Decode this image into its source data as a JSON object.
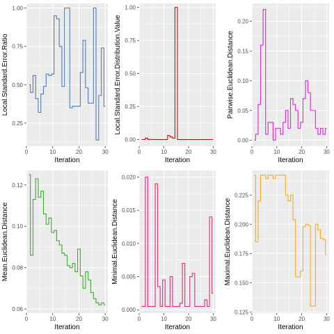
{
  "figure": {
    "background": "#ffffff",
    "panel_background": "#ebebeb",
    "grid_color": "#ffffff"
  },
  "chart_data": [
    {
      "type": "line",
      "step": true,
      "color": "#4f7eb4",
      "xlabel": "Iteration",
      "ylabel": "Local.Standard.Error.Ratio",
      "xlim": [
        0,
        31
      ],
      "ylim": [
        0.1,
        1.03
      ],
      "xticks": [
        "0",
        "10",
        "20",
        "30"
      ],
      "yticks": [
        "0.25",
        "0.50",
        "0.75",
        "1.00"
      ],
      "x": [
        1,
        2,
        3,
        4,
        5,
        6,
        7,
        8,
        9,
        10,
        11,
        12,
        13,
        14,
        15,
        16,
        17,
        18,
        19,
        20,
        21,
        22,
        23,
        24,
        25,
        26,
        27,
        28,
        29,
        30
      ],
      "y": [
        0.5,
        0.45,
        0.56,
        0.41,
        0.32,
        0.44,
        0.49,
        0.57,
        0.56,
        0.57,
        0.95,
        0.93,
        0.75,
        0.49,
        1.0,
        1.0,
        0.35,
        0.36,
        0.36,
        0.36,
        0.58,
        0.79,
        0.48,
        0.38,
        0.38,
        1.0,
        0.14,
        0.43,
        0.74,
        0.36
      ]
    },
    {
      "type": "line",
      "step": true,
      "color": "#a31a1a",
      "xlabel": "Iteration",
      "ylabel": "Local.Standard.Error.Distribution.Value",
      "xlim": [
        0,
        31
      ],
      "ylim": [
        -0.05,
        1.03
      ],
      "xticks": [
        "0",
        "10",
        "20",
        "30"
      ],
      "yticks": [
        "0.00",
        "0.25",
        "0.50",
        "0.75",
        "1.00"
      ],
      "x": [
        1,
        2,
        3,
        4,
        5,
        6,
        7,
        8,
        9,
        10,
        11,
        12,
        13,
        14,
        15,
        16,
        17,
        18,
        19,
        20,
        21,
        22,
        23,
        24,
        25,
        26,
        27,
        28,
        29,
        30
      ],
      "y": [
        0.0,
        0.0,
        0.01,
        0.0,
        0.0,
        0.0,
        0.0,
        0.0,
        0.0,
        0.0,
        0.0,
        0.03,
        0.02,
        0.01,
        1.0,
        0.0,
        0.0,
        0.0,
        0.0,
        0.0,
        0.0,
        0.0,
        0.0,
        0.0,
        0.0,
        0.0,
        0.0,
        0.0,
        0.0,
        0.0
      ]
    },
    {
      "type": "line",
      "step": true,
      "color": "#d726d6",
      "xlabel": "Iteration",
      "ylabel": "Pairwise.Euclidean.Distance",
      "xlim": [
        0,
        31
      ],
      "ylim": [
        -0.01,
        0.23
      ],
      "xticks": [
        "0",
        "10",
        "20",
        "30"
      ],
      "yticks": [
        "0.00",
        "0.05",
        "0.10",
        "0.15",
        "0.20"
      ],
      "x": [
        1,
        2,
        3,
        4,
        5,
        6,
        7,
        8,
        9,
        10,
        11,
        12,
        13,
        14,
        15,
        16,
        17,
        18,
        19,
        20,
        21,
        22,
        23,
        24,
        25,
        26,
        27,
        28,
        29,
        30
      ],
      "y": [
        0.0,
        0.01,
        0.06,
        0.16,
        0.22,
        0.01,
        0.03,
        0.03,
        0.0,
        0.02,
        0.02,
        0.01,
        0.03,
        0.05,
        0.02,
        0.07,
        0.06,
        0.05,
        0.02,
        0.03,
        0.07,
        0.1,
        0.08,
        0.05,
        0.05,
        0.02,
        0.01,
        0.02,
        0.01,
        0.02
      ]
    },
    {
      "type": "line",
      "step": true,
      "color": "#40a735",
      "xlabel": "Iteration",
      "ylabel": "Mean.Euclidean.Distance",
      "xlim": [
        0,
        31
      ],
      "ylim": [
        0.058,
        0.127
      ],
      "xticks": [
        "0",
        "10",
        "20",
        "30"
      ],
      "yticks": [
        "0.06",
        "0.08",
        "0.10",
        "0.12"
      ],
      "x": [
        1,
        2,
        3,
        4,
        5,
        6,
        7,
        8,
        9,
        10,
        11,
        12,
        13,
        14,
        15,
        16,
        17,
        18,
        19,
        20,
        21,
        22,
        23,
        24,
        25,
        26,
        27,
        28,
        29,
        30
      ],
      "y": [
        0.125,
        0.086,
        0.113,
        0.123,
        0.114,
        0.117,
        0.106,
        0.101,
        0.104,
        0.097,
        0.098,
        0.093,
        0.091,
        0.087,
        0.086,
        0.081,
        0.08,
        0.082,
        0.078,
        0.089,
        0.076,
        0.07,
        0.078,
        0.074,
        0.068,
        0.065,
        0.063,
        0.062,
        0.063,
        0.062
      ]
    },
    {
      "type": "line",
      "step": true,
      "color": "#d62f7a",
      "xlabel": "Iteration",
      "ylabel": "Minimal.Euclidean.Distance",
      "xlim": [
        0,
        31
      ],
      "ylim": [
        -0.0005,
        0.021
      ],
      "xticks": [
        "0",
        "10",
        "20",
        "30"
      ],
      "yticks": [
        "0.000",
        "0.005",
        "0.010",
        "0.015",
        "0.020"
      ],
      "x": [
        1,
        2,
        3,
        4,
        5,
        6,
        7,
        8,
        9,
        10,
        11,
        12,
        13,
        14,
        15,
        16,
        17,
        18,
        19,
        20,
        21,
        22,
        23,
        24,
        25,
        26,
        27,
        28,
        29,
        30
      ],
      "y": [
        0.0005,
        0.0005,
        0.02,
        0.0005,
        0.0005,
        0.0005,
        0.019,
        0.0035,
        0.0005,
        0.0045,
        0.0005,
        0.0005,
        0.005,
        0.0005,
        0.0005,
        0.0005,
        0.001,
        0.007,
        0.0005,
        0.0005,
        0.005,
        0.0055,
        0.0005,
        0.0005,
        0.0005,
        0.0005,
        0.0015,
        0.0005,
        0.014,
        0.0025
      ]
    },
    {
      "type": "line",
      "step": true,
      "color": "#f8a825",
      "xlabel": "Iteration",
      "ylabel": "Maximal.Euclidean.Distance",
      "xlim": [
        0,
        31
      ],
      "ylim": [
        0.124,
        0.246
      ],
      "xticks": [
        "0",
        "10",
        "20",
        "30"
      ],
      "yticks": [
        "0.125",
        "0.150",
        "0.175",
        "0.200",
        "0.225"
      ],
      "x": [
        1,
        2,
        3,
        4,
        5,
        6,
        7,
        8,
        9,
        10,
        11,
        12,
        13,
        14,
        15,
        16,
        17,
        18,
        19,
        20,
        21,
        22,
        23,
        24,
        25,
        26,
        27,
        28,
        29,
        30
      ],
      "y": [
        0.242,
        0.185,
        0.22,
        0.242,
        0.242,
        0.239,
        0.242,
        0.242,
        0.239,
        0.242,
        0.242,
        0.242,
        0.242,
        0.225,
        0.22,
        0.225,
        0.204,
        0.155,
        0.155,
        0.16,
        0.198,
        0.2,
        0.199,
        0.13,
        0.13,
        0.2,
        0.195,
        0.188,
        0.187,
        0.174
      ]
    }
  ]
}
